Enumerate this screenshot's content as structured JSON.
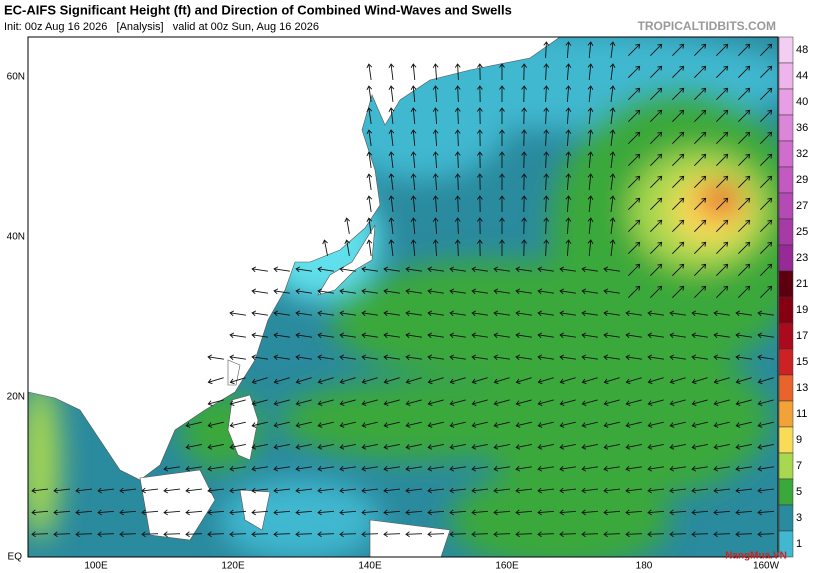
{
  "header": {
    "title": "EC-AIFS Significant Height (ft) and Direction of Combined Wind-Waves and Swells",
    "subtitle": "Init: 00z Aug 16 2026   [Analysis]   valid at 00z Sun, Aug 16 2026",
    "site": "TROPICALTIDBITS.COM"
  },
  "map": {
    "lat_labels": [
      "60N",
      "40N",
      "20N",
      "EQ"
    ],
    "lon_labels": [
      "100E",
      "120E",
      "140E",
      "160E",
      "180",
      "160W"
    ]
  },
  "colorbar": {
    "levels": [
      48,
      44,
      40,
      36,
      32,
      29,
      27,
      25,
      23,
      21,
      19,
      17,
      15,
      13,
      11,
      9,
      7,
      5,
      3,
      1
    ],
    "colors": [
      "#f4cdf2",
      "#eeb4ec",
      "#e69ee4",
      "#dc86da",
      "#d06ece",
      "#c25ac2",
      "#b44ab4",
      "#a63aa6",
      "#962a96",
      "#5c0010",
      "#860014",
      "#aa0a1e",
      "#cc2226",
      "#e8642c",
      "#f2a236",
      "#f8dc58",
      "#a8d850",
      "#3aa83a",
      "#2a8a9e",
      "#40b8d0"
    ]
  },
  "watermark": "NangMua.VN"
}
